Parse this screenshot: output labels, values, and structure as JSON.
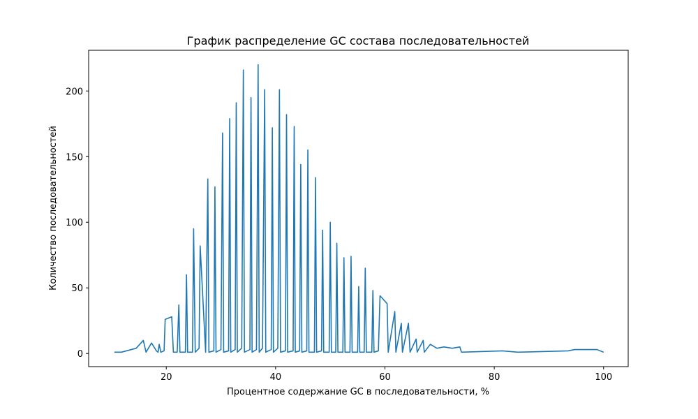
{
  "chart_data": {
    "type": "line",
    "title": "График распределение GC состава последовательностей",
    "xlabel": "Процентное содержание GC в последовательности, %",
    "ylabel": "Количество последовательностей",
    "color": "#1f77b4",
    "x": [
      10.5,
      11.8,
      14.5,
      15.8,
      16.3,
      17.3,
      18.2,
      18.5,
      18.7,
      19.0,
      19.6,
      19.8,
      21.0,
      21.3,
      22.0,
      22.3,
      22.5,
      23.5,
      23.7,
      23.9,
      24.8,
      25.0,
      25.3,
      26.0,
      26.2,
      27.2,
      27.6,
      27.8,
      28.7,
      28.9,
      29.1,
      30.0,
      30.3,
      30.5,
      31.4,
      31.6,
      31.8,
      32.6,
      32.8,
      33.0,
      33.8,
      34.1,
      34.3,
      35.3,
      35.5,
      35.7,
      36.5,
      36.8,
      37.0,
      37.6,
      38.0,
      38.2,
      39.2,
      39.4,
      39.6,
      40.4,
      40.7,
      40.9,
      41.8,
      42.0,
      42.2,
      43.2,
      43.4,
      43.6,
      44.4,
      44.6,
      44.8,
      45.7,
      45.9,
      46.1,
      47.1,
      47.3,
      47.5,
      48.4,
      48.6,
      48.8,
      49.8,
      50.0,
      50.2,
      51.0,
      51.2,
      51.4,
      52.3,
      52.5,
      52.7,
      53.6,
      53.8,
      54.0,
      55.0,
      55.2,
      55.4,
      56.2,
      56.4,
      56.6,
      57.6,
      57.8,
      58.0,
      58.8,
      59.1,
      60.4,
      60.6,
      61.8,
      62.0,
      63.0,
      63.2,
      64.3,
      64.6,
      65.7,
      65.9,
      67.0,
      67.2,
      68.3,
      69.5,
      70.8,
      72.3,
      73.7,
      74.0,
      81.5,
      84.3,
      93.5,
      94.7,
      98.8,
      100
    ],
    "values": [
      1,
      1,
      4,
      10,
      1,
      8,
      2,
      1,
      7,
      1,
      2,
      26,
      28,
      1,
      1,
      37,
      1,
      1,
      60,
      1,
      1,
      95,
      1,
      4,
      82,
      1,
      133,
      1,
      2,
      127,
      1,
      3,
      168,
      1,
      2,
      179,
      1,
      3,
      191,
      1,
      4,
      216,
      1,
      3,
      195,
      1,
      3,
      220,
      1,
      4,
      201,
      1,
      3,
      172,
      1,
      4,
      201,
      1,
      2,
      182,
      1,
      2,
      173,
      1,
      2,
      144,
      1,
      2,
      155,
      1,
      1,
      134,
      1,
      2,
      94,
      1,
      1,
      100,
      1,
      1,
      84,
      1,
      1,
      73,
      1,
      1,
      74,
      1,
      1,
      51,
      1,
      1,
      65,
      1,
      1,
      48,
      1,
      2,
      44,
      38,
      1,
      32,
      1,
      23,
      1,
      23,
      1,
      11,
      1,
      10,
      1,
      7,
      4,
      5,
      4,
      5,
      1,
      2,
      1,
      2,
      3,
      3,
      1
    ],
    "xlim": [
      5.8,
      104.5
    ],
    "ylim": [
      -10,
      231
    ],
    "xticks": [
      20,
      40,
      60,
      80,
      100
    ],
    "yticks": [
      0,
      50,
      100,
      150,
      200
    ]
  }
}
